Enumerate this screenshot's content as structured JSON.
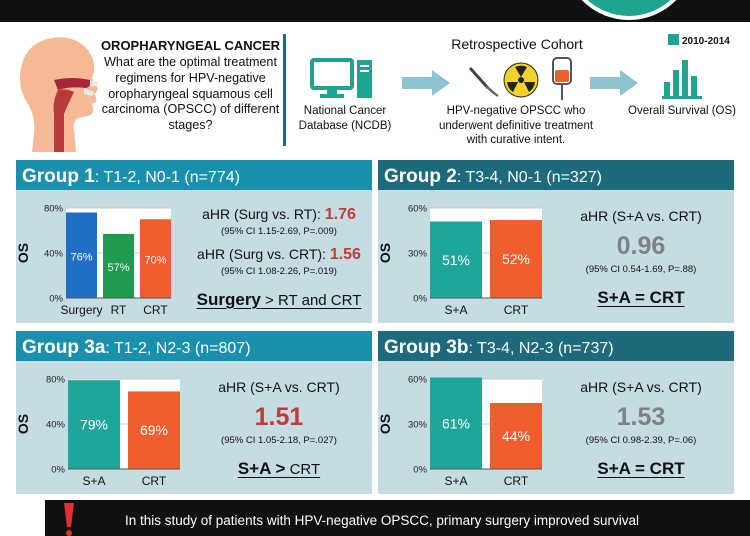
{
  "header": {
    "question_title": "OROPHARYNGEAL CANCER",
    "question_text": "What are the optimal treatment regimens for HPV-negative oropharyngeal squamous cell carcinoma (OPSCC) of different stages?",
    "cohort_title": "Retrospective Cohort",
    "years": "2010-2014",
    "flow": {
      "source_label": "National Cancer Database (NCDB)",
      "population_label": "HPV-negative OPSCC who underwent definitive treatment with curative intent.",
      "outcome_label": "Overall Survival (OS)"
    },
    "icons": [
      "head-anatomy-icon",
      "computer-icon",
      "scalpel-icon",
      "radiation-icon",
      "iv-bag-icon",
      "bar-chart-icon",
      "calendar-icon"
    ]
  },
  "colors": {
    "panel_bg": "#c4dce2",
    "header_teal": "#1a8fae",
    "header_dark": "#1c6a7c",
    "surgery": "#1f6fc6",
    "rt": "#1e9b4c",
    "crt": "#ef5d2f",
    "sa": "#1fa69a",
    "hr_red": "#c23b36",
    "hr_gray": "#808080"
  },
  "groups": [
    {
      "name": "Group 1",
      "criteria": ": T1-2, N0-1 (n=774)",
      "stats": [
        {
          "label": "aHR (Surg vs. RT): ",
          "hr": "1.76",
          "ci": "(95% CI 1.15-2.69, P=.009)"
        },
        {
          "label": "aHR (Surg vs. CRT): ",
          "hr": "1.56",
          "ci": "(95% CI 1.08-2.26, P=.019)"
        }
      ],
      "conclusion_main": "Surgery",
      "conclusion_rest": " > RT and CRT"
    },
    {
      "name": "Group 2",
      "criteria": ": T3-4, N0-1 (n=327)",
      "stat_label": "aHR (S+A vs. CRT)",
      "hr": "0.96",
      "ci": "(95% CI 0.54-1.69, P=.88)",
      "conclusion": "S+A = CRT"
    },
    {
      "name": "Group 3a",
      "criteria": ": T1-2, N2-3 (n=807)",
      "stat_label": "aHR (S+A vs. CRT)",
      "hr": "1.51",
      "ci": "(95% CI 1.05-2.18, P=.027)",
      "conclusion_main": "S+A >",
      "conclusion_rest": " CRT"
    },
    {
      "name": "Group 3b",
      "criteria": ": T3-4, N2-3 (n=737)",
      "stat_label": "aHR (S+A vs. CRT)",
      "hr": "1.53",
      "ci": "(95% CI 0.98-2.39, P=.06)",
      "conclusion": "S+A = CRT"
    }
  ],
  "chart_data": [
    {
      "type": "bar",
      "ylabel": "OS",
      "ylim": [
        0,
        80
      ],
      "yticks": [
        "0%",
        "40%",
        "80%"
      ],
      "categories": [
        "Surgery",
        "RT",
        "CRT"
      ],
      "values": [
        76,
        57,
        70
      ],
      "data_labels": [
        "76%",
        "57%",
        "70%"
      ],
      "colors": [
        "#1f6fc6",
        "#1e9b4c",
        "#ef5d2f"
      ]
    },
    {
      "type": "bar",
      "ylabel": "OS",
      "ylim": [
        0,
        60
      ],
      "yticks": [
        "0%",
        "30%",
        "60%"
      ],
      "categories": [
        "S+A",
        "CRT"
      ],
      "values": [
        51,
        52
      ],
      "data_labels": [
        "51%",
        "52%"
      ],
      "colors": [
        "#1fa69a",
        "#ef5d2f"
      ]
    },
    {
      "type": "bar",
      "ylabel": "OS",
      "ylim": [
        0,
        80
      ],
      "yticks": [
        "0%",
        "40%",
        "80%"
      ],
      "categories": [
        "S+A",
        "CRT"
      ],
      "values": [
        79,
        69
      ],
      "data_labels": [
        "79%",
        "69%"
      ],
      "colors": [
        "#1fa69a",
        "#ef5d2f"
      ]
    },
    {
      "type": "bar",
      "ylabel": "OS",
      "ylim": [
        0,
        60
      ],
      "yticks": [
        "0%",
        "30%",
        "60%"
      ],
      "categories": [
        "S+A",
        "CRT"
      ],
      "values": [
        61,
        44
      ],
      "data_labels": [
        "61%",
        "44%"
      ],
      "colors": [
        "#1fa69a",
        "#ef5d2f"
      ]
    }
  ],
  "footer": {
    "text": "In this study of patients with HPV-negative OPSCC, primary surgery improved survival"
  }
}
